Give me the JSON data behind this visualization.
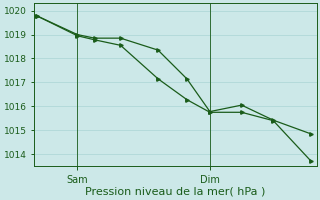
{
  "xlabel": "Pression niveau de la mer( hPa )",
  "ylim": [
    1013.5,
    1020.3
  ],
  "xlim": [
    0,
    9.8
  ],
  "yticks": [
    1014,
    1015,
    1016,
    1017,
    1018,
    1019,
    1020
  ],
  "bg_color": "#cce8e8",
  "line_color": "#1a5c1a",
  "marker_color": "#1a5c1a",
  "grid_color": "#aad4d4",
  "sam_x": 1.5,
  "dim_x": 6.1,
  "series1_x": [
    0.1,
    1.5,
    2.1,
    3.0,
    4.3,
    5.3,
    6.1,
    7.2,
    8.3,
    9.6
  ],
  "series1_y": [
    1019.78,
    1019.0,
    1018.85,
    1018.85,
    1018.35,
    1017.15,
    1015.78,
    1016.05,
    1015.42,
    1014.85
  ],
  "series2_x": [
    0.1,
    1.5,
    2.1,
    3.0,
    4.3,
    5.3,
    6.1,
    7.2,
    8.3,
    9.6
  ],
  "series2_y": [
    1019.78,
    1018.95,
    1018.78,
    1018.55,
    1017.15,
    1016.28,
    1015.75,
    1015.75,
    1015.4,
    1013.72
  ],
  "sam_label": "Sam",
  "dim_label": "Dim",
  "xlabel_fontsize": 8,
  "ytick_fontsize": 6.5,
  "xtick_fontsize": 7
}
